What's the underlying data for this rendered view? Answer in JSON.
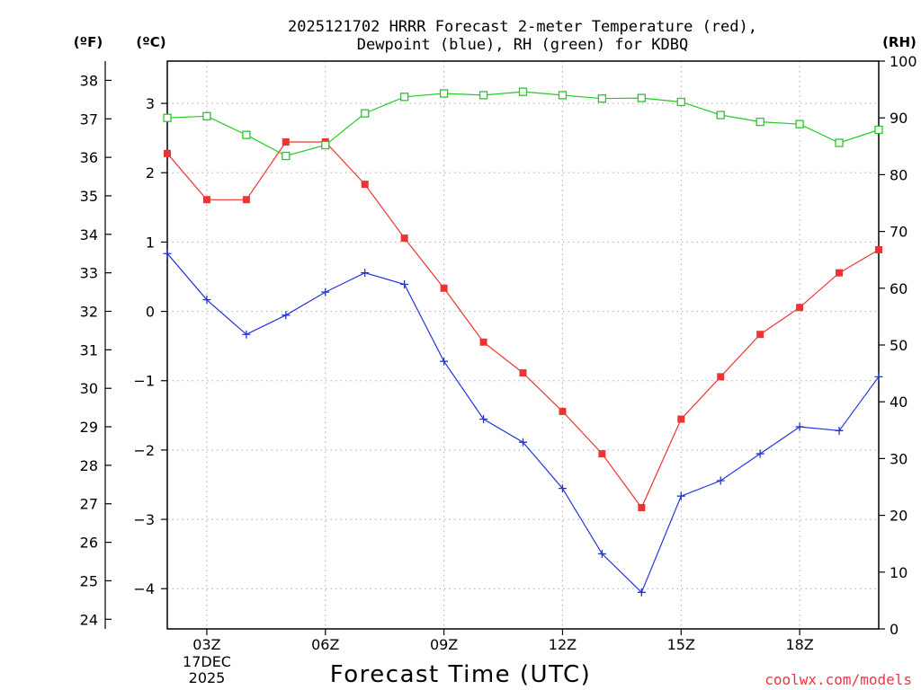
{
  "chart_data": {
    "type": "line",
    "title": [
      "2025121702 HRRR Forecast 2-meter Temperature (red),",
      "Dewpoint (blue), RH (green) for KDBQ"
    ],
    "xlabel": "Forecast Time (UTC)",
    "x_hours": [
      2,
      3,
      4,
      5,
      6,
      7,
      8,
      9,
      10,
      11,
      12,
      13,
      14,
      15,
      16,
      17,
      18,
      19,
      20
    ],
    "x_ticks": [
      {
        "hour": 3,
        "label": "03Z"
      },
      {
        "hour": 6,
        "label": "06Z"
      },
      {
        "hour": 9,
        "label": "09Z"
      },
      {
        "hour": 12,
        "label": "12Z"
      },
      {
        "hour": 15,
        "label": "15Z"
      },
      {
        "hour": 18,
        "label": "18Z"
      }
    ],
    "date_label": [
      "17DEC",
      "2025"
    ],
    "xlim": [
      2,
      20
    ],
    "axes": {
      "left_f": {
        "label": "(ºF)",
        "ylim": [
          23.75,
          38.5
        ],
        "ticks": [
          24,
          25,
          26,
          27,
          28,
          29,
          30,
          31,
          32,
          33,
          34,
          35,
          36,
          37,
          38
        ]
      },
      "left_c": {
        "label": "(ºC)",
        "ylim": [
          -4.58,
          3.61
        ],
        "ticks": [
          -4,
          -3,
          -2,
          -1,
          0,
          1,
          2,
          3
        ]
      },
      "right_rh": {
        "label": "(RH)",
        "ylim": [
          0,
          100
        ],
        "ticks": [
          0,
          10,
          20,
          30,
          40,
          50,
          60,
          70,
          80,
          90,
          100
        ]
      }
    },
    "series": [
      {
        "name": "Temperature",
        "unit": "F",
        "color": "#ee3333",
        "marker": "filled-square",
        "values": [
          36.1,
          34.9,
          34.9,
          36.4,
          36.4,
          35.3,
          33.9,
          32.6,
          31.2,
          30.4,
          29.4,
          28.3,
          26.9,
          29.2,
          30.3,
          31.4,
          32.1,
          33.0,
          33.6
        ]
      },
      {
        "name": "Dewpoint",
        "unit": "F",
        "color": "#2233dd",
        "marker": "plus",
        "values": [
          33.5,
          32.3,
          31.4,
          31.9,
          32.5,
          33.0,
          32.7,
          30.7,
          29.2,
          28.6,
          27.4,
          25.7,
          24.7,
          27.2,
          27.6,
          28.3,
          29.0,
          28.9,
          30.3
        ]
      },
      {
        "name": "RH",
        "unit": "%",
        "color": "#22cc22",
        "marker": "open-square",
        "values": [
          90.0,
          90.3,
          87.0,
          83.3,
          85.2,
          90.8,
          93.7,
          94.3,
          94.0,
          94.6,
          94.0,
          93.4,
          93.5,
          92.8,
          90.5,
          89.3,
          88.9,
          85.6,
          87.9
        ]
      }
    ]
  },
  "watermark": "coolwx.com/models"
}
